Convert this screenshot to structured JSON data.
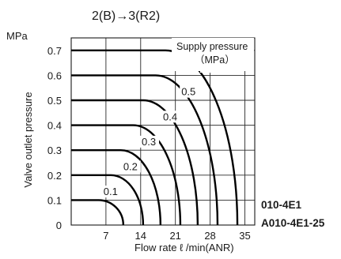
{
  "chart_data": {
    "type": "line",
    "title": "2(B)→3(R2)",
    "y_unit": "MPa",
    "ylabel": "Valve outlet pressure",
    "xlabel": "Flow rate  ℓ /min(ANR)",
    "xlim": [
      0,
      37
    ],
    "ylim": [
      0,
      0.75
    ],
    "x_ticks": [
      7,
      14,
      21,
      28,
      35
    ],
    "y_ticks": [
      0,
      0.1,
      0.2,
      0.3,
      0.4,
      0.5,
      0.6,
      0.7
    ],
    "x_tick_labels": [
      "7",
      "14",
      "21",
      "28",
      "35"
    ],
    "y_tick_labels": [
      "0",
      "0.1",
      "0.2",
      "0.3",
      "0.4",
      "0.5",
      "0.6",
      "0.7"
    ],
    "grid": true,
    "legend": {
      "title": "Supply pressure",
      "unit": "（MPa）",
      "placement": "top-right"
    },
    "series": [
      {
        "name": "0.1",
        "label": "0.1",
        "max_flow": 10.5,
        "curve_start": 5.5,
        "label_at": [
          6.5,
          0.12
        ]
      },
      {
        "name": "0.2",
        "label": "0.2",
        "max_flow": 14.5,
        "curve_start": 8.0,
        "label_at": [
          10.5,
          0.22
        ]
      },
      {
        "name": "0.3",
        "label": "0.3",
        "max_flow": 18.0,
        "curve_start": 10.0,
        "label_at": [
          14.2,
          0.32
        ]
      },
      {
        "name": "0.4",
        "label": "0.4",
        "max_flow": 22.0,
        "curve_start": 12.5,
        "label_at": [
          18.5,
          0.42
        ]
      },
      {
        "name": "0.5",
        "label": "0.5",
        "max_flow": 25.5,
        "curve_start": 14.5,
        "label_at": [
          22.2,
          0.52
        ]
      },
      {
        "name": "0.6",
        "label": "0.6",
        "max_flow": 29.5,
        "curve_start": 17.0,
        "label_at": [
          26.3,
          0.62
        ]
      },
      {
        "name": "0.7",
        "label": "0.7",
        "max_flow": 33.5,
        "curve_start": 19.0,
        "label_at": [
          30.5,
          0.71
        ]
      }
    ],
    "model_labels": [
      "010-4E1",
      "A010-4E1-25"
    ]
  }
}
